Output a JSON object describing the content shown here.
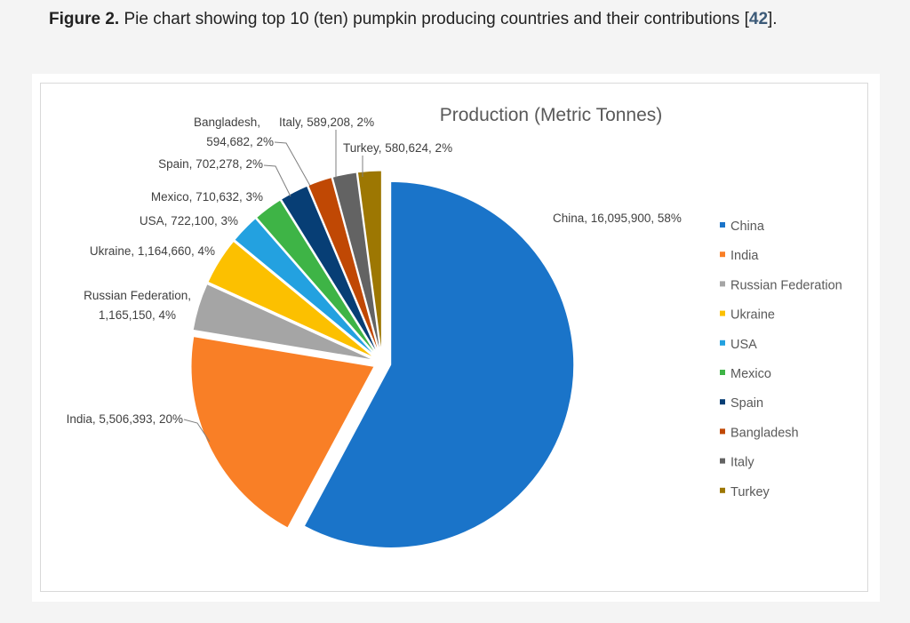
{
  "caption": {
    "label": "Figure 2.",
    "text_before_ref": " Pie chart showing top 10 (ten) pumpkin producing countries and their contributions [",
    "ref": "42",
    "text_after_ref": "]."
  },
  "colors": {
    "China": "#1a74c9",
    "India": "#f97f26",
    "Russian Federation": "#a5a5a5",
    "Ukraine": "#fcc000",
    "USA": "#23a1e0",
    "Mexico": "#3eb446",
    "Spain": "#073e75",
    "Bangladesh": "#c04804",
    "Italy": "#636363",
    "Turkey": "#9d7702"
  },
  "chart_data": {
    "type": "pie",
    "title": "Production (Metric Tonnes)",
    "legend_position": "right",
    "exploded": true,
    "slices": [
      {
        "name": "China",
        "value": 16095900,
        "value_label": "16,095,900",
        "percent": "58%"
      },
      {
        "name": "India",
        "value": 5506393,
        "value_label": "5,506,393",
        "percent": "20%"
      },
      {
        "name": "Russian Federation",
        "value": 1165150,
        "value_label": "1,165,150",
        "percent": "4%"
      },
      {
        "name": "Ukraine",
        "value": 1164660,
        "value_label": "1,164,660",
        "percent": "4%"
      },
      {
        "name": "USA",
        "value": 722100,
        "value_label": "722,100",
        "percent": "3%"
      },
      {
        "name": "Mexico",
        "value": 710632,
        "value_label": "710,632",
        "percent": "3%"
      },
      {
        "name": "Spain",
        "value": 702278,
        "value_label": "702,278",
        "percent": "2%"
      },
      {
        "name": "Bangladesh",
        "value": 594682,
        "value_label": "594,682",
        "percent": "2%"
      },
      {
        "name": "Italy",
        "value": 589208,
        "value_label": "589,208",
        "percent": "2%"
      },
      {
        "name": "Turkey",
        "value": 580624,
        "value_label": "580,624",
        "percent": "2%"
      }
    ],
    "legend": [
      "China",
      "India",
      "Russian Federation",
      "Ukraine",
      "USA",
      "Mexico",
      "Spain",
      "Bangladesh",
      "Italy",
      "Turkey"
    ]
  }
}
